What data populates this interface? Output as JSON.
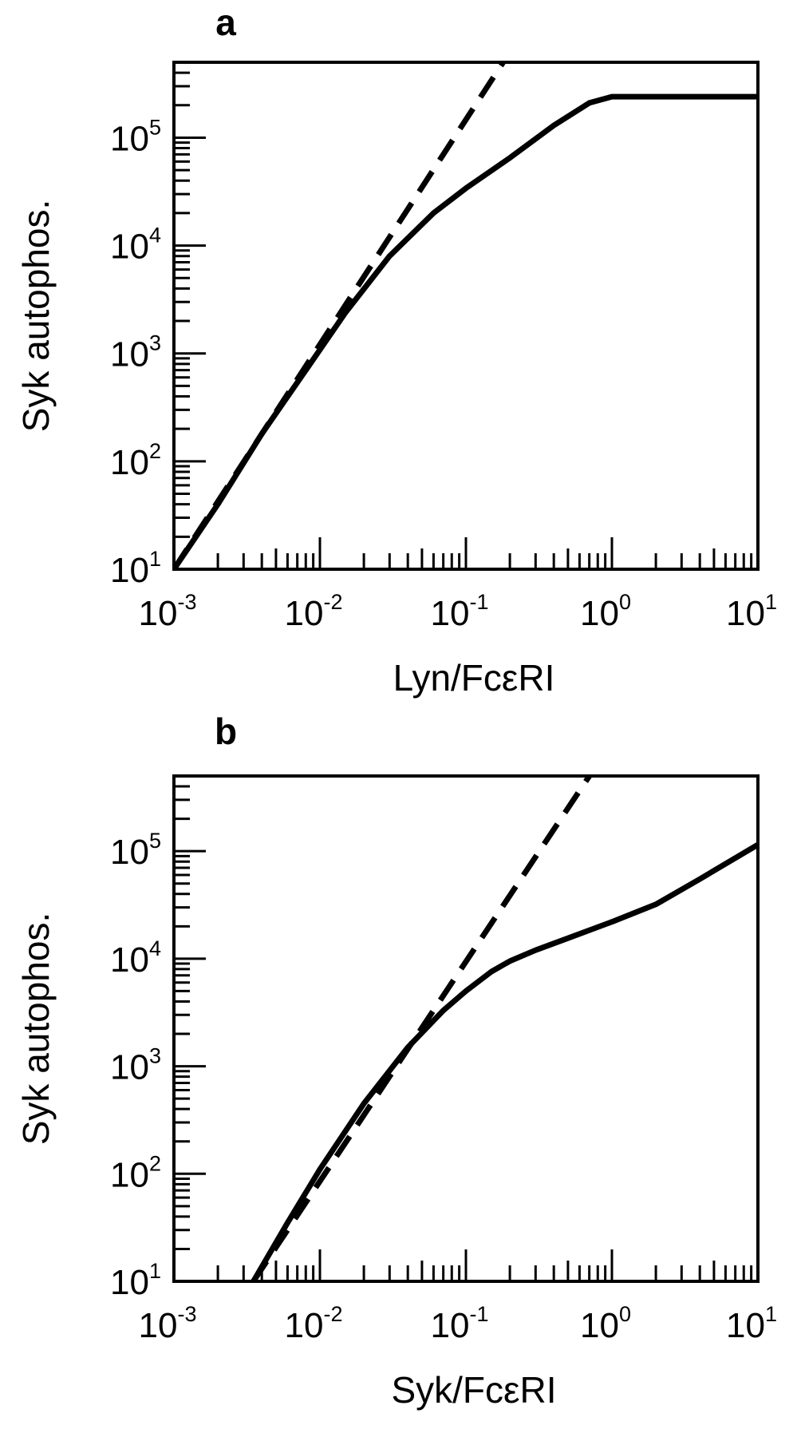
{
  "chart_data": [
    {
      "type": "line",
      "panel_label": "a",
      "xlabel": "Lyn/FcεRI",
      "ylabel": "Syk autophos.",
      "xscale": "log",
      "yscale": "log",
      "xlim": [
        0.001,
        10
      ],
      "ylim": [
        10,
        500000
      ],
      "xticks": [
        {
          "base": "10",
          "exp": "-3"
        },
        {
          "base": "10",
          "exp": "-2"
        },
        {
          "base": "10",
          "exp": "-1"
        },
        {
          "base": "10",
          "exp": "0"
        },
        {
          "base": "10",
          "exp": "1"
        }
      ],
      "yticks": [
        {
          "base": "10",
          "exp": "1"
        },
        {
          "base": "10",
          "exp": "2"
        },
        {
          "base": "10",
          "exp": "3"
        },
        {
          "base": "10",
          "exp": "4"
        },
        {
          "base": "10",
          "exp": "5"
        }
      ],
      "grid": false,
      "series": [
        {
          "style": "solid",
          "x": [
            0.001,
            0.002,
            0.004,
            0.008,
            0.015,
            0.03,
            0.06,
            0.1,
            0.2,
            0.4,
            0.7,
            1.0,
            2.0,
            5.0,
            10.0
          ],
          "y": [
            10,
            40,
            180,
            700,
            2400,
            8000,
            20000,
            34000,
            65000,
            130000,
            210000,
            240000,
            240000,
            240000,
            240000
          ]
        },
        {
          "style": "dashed",
          "x": [
            0.001,
            0.18
          ],
          "y": [
            10,
            500000
          ]
        }
      ]
    },
    {
      "type": "line",
      "panel_label": "b",
      "xlabel": "Syk/FcεRI",
      "ylabel": "Syk autophos.",
      "xscale": "log",
      "yscale": "log",
      "xlim": [
        0.001,
        10
      ],
      "ylim": [
        10,
        500000
      ],
      "xticks": [
        {
          "base": "10",
          "exp": "-3"
        },
        {
          "base": "10",
          "exp": "-2"
        },
        {
          "base": "10",
          "exp": "-1"
        },
        {
          "base": "10",
          "exp": "0"
        },
        {
          "base": "10",
          "exp": "1"
        }
      ],
      "yticks": [
        {
          "base": "10",
          "exp": "1"
        },
        {
          "base": "10",
          "exp": "2"
        },
        {
          "base": "10",
          "exp": "3"
        },
        {
          "base": "10",
          "exp": "4"
        },
        {
          "base": "10",
          "exp": "5"
        }
      ],
      "grid": false,
      "series": [
        {
          "style": "solid",
          "x": [
            0.0035,
            0.006,
            0.01,
            0.02,
            0.04,
            0.07,
            0.1,
            0.15,
            0.2,
            0.3,
            0.5,
            1.0,
            2.0,
            4.0,
            10.0
          ],
          "y": [
            10,
            35,
            110,
            450,
            1500,
            3300,
            5000,
            7600,
            9500,
            12000,
            15500,
            22000,
            32000,
            55000,
            115000
          ]
        },
        {
          "style": "dashed",
          "x": [
            0.0035,
            0.7
          ],
          "y": [
            10,
            500000
          ]
        }
      ]
    }
  ]
}
